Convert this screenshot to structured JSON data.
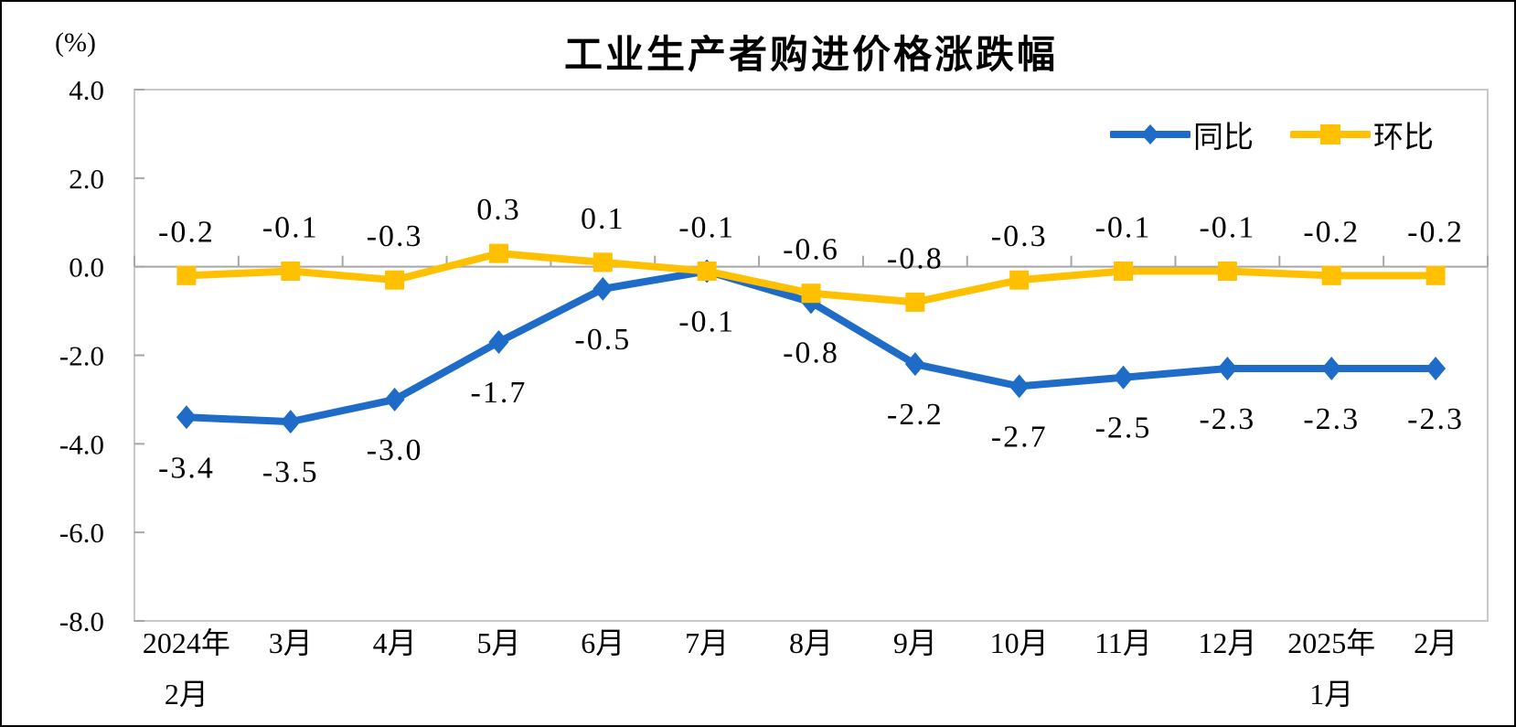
{
  "window": {
    "background": "#ffffff",
    "frame_border_color": "#000000"
  },
  "chart_data": {
    "type": "line",
    "title": "工业生产者购进价格涨跌幅",
    "unit_label": "(%)",
    "categories": [
      "2024年\n2月",
      "3月",
      "4月",
      "5月",
      "6月",
      "7月",
      "8月",
      "9月",
      "10月",
      "11月",
      "12月",
      "2025年\n1月",
      "2月"
    ],
    "series": [
      {
        "name": "同比",
        "color": "#1E6CC8",
        "marker": "diamond",
        "label_position": "below",
        "values": [
          -3.4,
          -3.5,
          -3.0,
          -1.7,
          -0.5,
          -0.1,
          -0.8,
          -2.2,
          -2.7,
          -2.5,
          -2.3,
          -2.3,
          -2.3
        ]
      },
      {
        "name": "环比",
        "color": "#FFC000",
        "marker": "square",
        "label_position": "above",
        "values": [
          -0.2,
          -0.1,
          -0.3,
          0.3,
          0.1,
          -0.1,
          -0.6,
          -0.8,
          -0.3,
          -0.1,
          -0.1,
          -0.2,
          -0.2
        ]
      }
    ],
    "ylim": [
      -8.0,
      4.0
    ],
    "y_tick_step": 2.0,
    "y_ticks": [
      "4.0",
      "2.0",
      "0.0",
      "-2.0",
      "-4.0",
      "-6.0",
      "-8.0"
    ],
    "grid": "zero-line-only",
    "legend_position": "top-right-inside",
    "axis_color": "#A6A6A6",
    "plot_border_color": "#C9C9C9",
    "label_color": "#000000"
  }
}
